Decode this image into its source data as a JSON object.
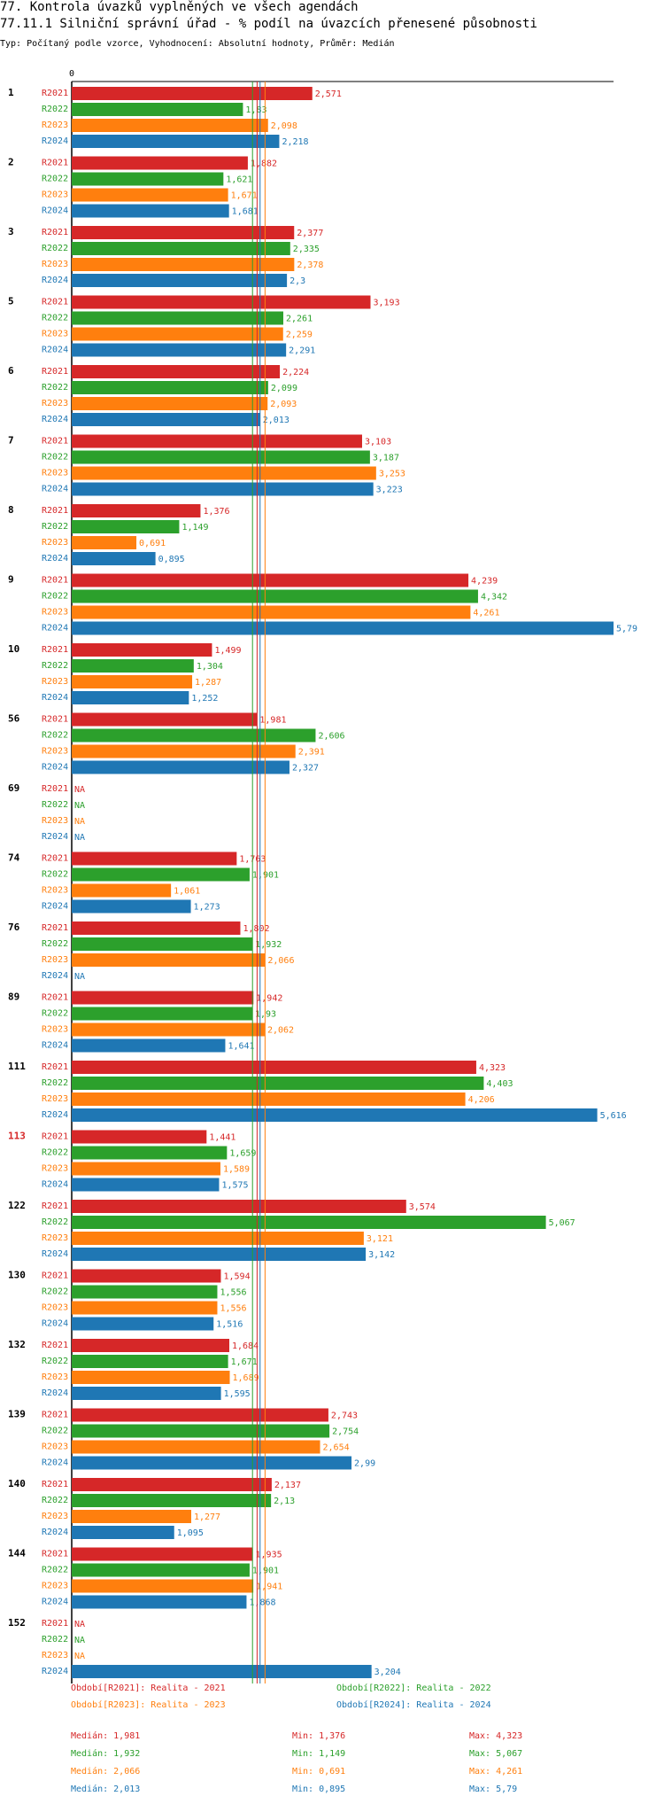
{
  "header": {
    "title": "77. Kontrola úvazků vyplněných ve všech agendách",
    "subtitle": "77.11.1 Silniční správní úřad - % podíl na úvazcích přenesené působnosti",
    "description": "Typ: Počítaný podle vzorce, Vyhodnocení: Absolutní hodnoty, Průměr: Medián"
  },
  "colors": {
    "R2021": "#d62728",
    "R2022": "#2ca02c",
    "R2023": "#ff7f0e",
    "R2024": "#1f77b4",
    "highlight_group": "#d62728"
  },
  "chart_data": {
    "type": "bar",
    "orientation": "horizontal",
    "axis_zero_label": "0",
    "xlim": [
      0,
      5.79
    ],
    "highlighted_group": "113",
    "categories": [
      "1",
      "2",
      "3",
      "5",
      "6",
      "7",
      "8",
      "9",
      "10",
      "56",
      "69",
      "74",
      "76",
      "89",
      "111",
      "113",
      "122",
      "130",
      "132",
      "139",
      "140",
      "144",
      "152"
    ],
    "series": [
      {
        "name": "R2021",
        "values": [
          2.571,
          1.882,
          2.377,
          3.193,
          2.224,
          3.103,
          1.376,
          4.239,
          1.499,
          1.981,
          null,
          1.763,
          1.802,
          1.942,
          4.323,
          1.441,
          3.574,
          1.594,
          1.684,
          2.743,
          2.137,
          1.935,
          null
        ],
        "labels": [
          "2,571",
          "1,882",
          "2,377",
          "3,193",
          "2,224",
          "3,103",
          "1,376",
          "4,239",
          "1,499",
          "1,981",
          "NA",
          "1,763",
          "1,802",
          "1,942",
          "4,323",
          "1,441",
          "3,574",
          "1,594",
          "1,684",
          "2,743",
          "2,137",
          "1,935",
          "NA"
        ]
      },
      {
        "name": "R2022",
        "values": [
          1.83,
          1.621,
          2.335,
          2.261,
          2.099,
          3.187,
          1.149,
          4.342,
          1.304,
          2.606,
          null,
          1.901,
          1.932,
          1.93,
          4.403,
          1.659,
          5.067,
          1.556,
          1.671,
          2.754,
          2.13,
          1.901,
          null
        ],
        "labels": [
          "1,83",
          "1,621",
          "2,335",
          "2,261",
          "2,099",
          "3,187",
          "1,149",
          "4,342",
          "1,304",
          "2,606",
          "NA",
          "1,901",
          "1,932",
          "1,93",
          "4,403",
          "1,659",
          "5,067",
          "1,556",
          "1,671",
          "2,754",
          "2,13",
          "1,901",
          "NA"
        ]
      },
      {
        "name": "R2023",
        "values": [
          2.098,
          1.671,
          2.378,
          2.259,
          2.093,
          3.253,
          0.691,
          4.261,
          1.287,
          2.391,
          null,
          1.061,
          2.066,
          2.062,
          4.206,
          1.589,
          3.121,
          1.556,
          1.689,
          2.654,
          1.277,
          1.941,
          null
        ],
        "labels": [
          "2,098",
          "1,671",
          "2,378",
          "2,259",
          "2,093",
          "3,253",
          "0,691",
          "4,261",
          "1,287",
          "2,391",
          "NA",
          "1,061",
          "2,066",
          "2,062",
          "4,206",
          "1,589",
          "3,121",
          "1,556",
          "1,689",
          "2,654",
          "1,277",
          "1,941",
          "NA"
        ]
      },
      {
        "name": "R2024",
        "values": [
          2.218,
          1.681,
          2.3,
          2.291,
          2.013,
          3.223,
          0.895,
          5.79,
          1.252,
          2.327,
          null,
          1.273,
          null,
          1.641,
          5.616,
          1.575,
          3.142,
          1.516,
          1.595,
          2.99,
          1.095,
          1.868,
          3.204
        ],
        "labels": [
          "2,218",
          "1,681",
          "2,3",
          "2,291",
          "2,013",
          "3,223",
          "0,895",
          "5,79",
          "1,252",
          "2,327",
          "NA",
          "1,273",
          "NA",
          "1,641",
          "5,616",
          "1,575",
          "3,142",
          "1,516",
          "1,595",
          "2,99",
          "1,095",
          "1,868",
          "3,204"
        ]
      }
    ],
    "medians": [
      1.981,
      1.932,
      2.066,
      2.013
    ]
  },
  "legend": {
    "items": [
      "Období[R2021]: Realita - 2021",
      "Období[R2022]: Realita - 2022",
      "Období[R2023]: Realita - 2023",
      "Období[R2024]: Realita - 2024"
    ]
  },
  "stats": [
    {
      "median": "Medián: 1,981",
      "min": "Min: 1,376",
      "max": "Max: 4,323"
    },
    {
      "median": "Medián: 1,932",
      "min": "Min: 1,149",
      "max": "Max: 5,067"
    },
    {
      "median": "Medián: 2,066",
      "min": "Min: 0,691",
      "max": "Max: 4,261"
    },
    {
      "median": "Medián: 2,013",
      "min": "Min: 0,895",
      "max": "Max: 5,79"
    }
  ]
}
